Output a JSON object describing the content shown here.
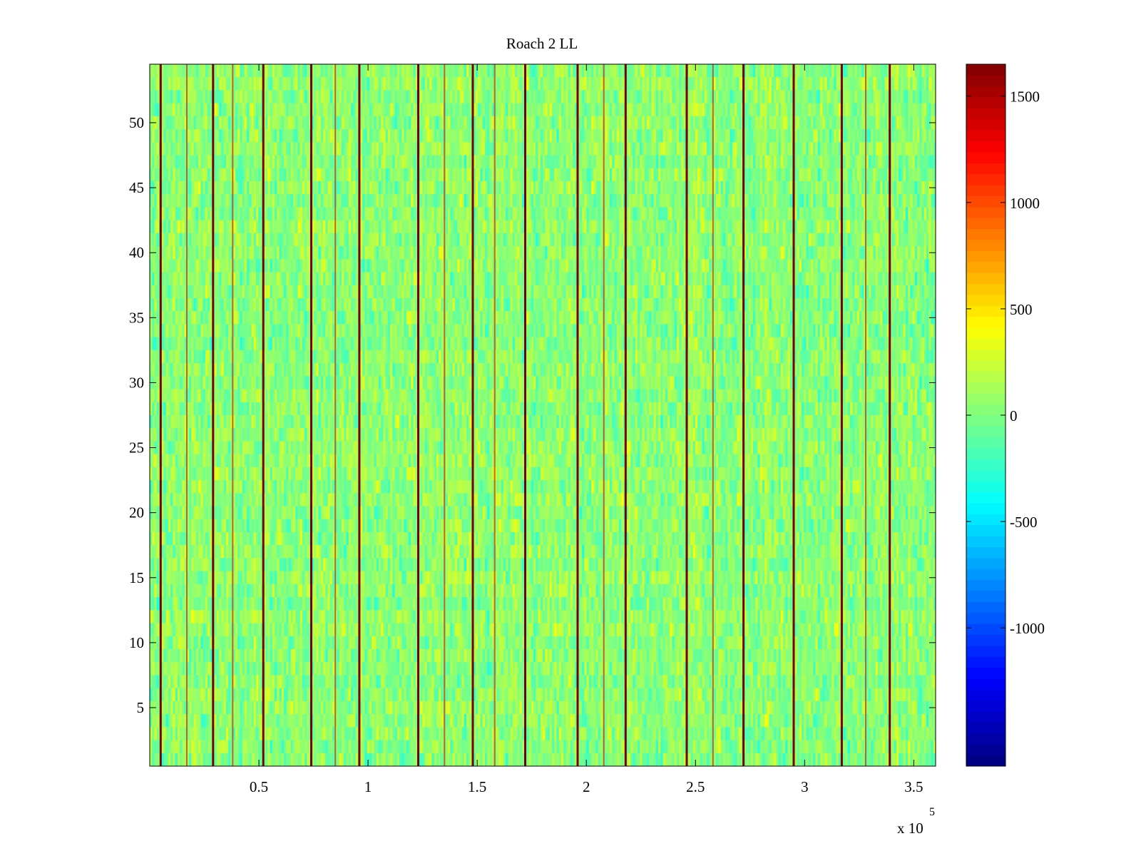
{
  "chart_data": {
    "type": "heatmap",
    "title": "Roach 2 LL",
    "xlabel": "",
    "ylabel": "",
    "x_exponent_label": {
      "base": "x 10",
      "exponent": "5"
    },
    "xlim": [
      0,
      3.6
    ],
    "x_ticks": [
      0.5,
      1,
      1.5,
      2,
      2.5,
      3,
      3.5
    ],
    "x_tick_labels": [
      "0.5",
      "1",
      "1.5",
      "2",
      "2.5",
      "3",
      "3.5"
    ],
    "ylim": [
      0.5,
      54.5
    ],
    "y_ticks": [
      5,
      10,
      15,
      20,
      25,
      30,
      35,
      40,
      45,
      50
    ],
    "y_tick_labels": [
      "5",
      "10",
      "15",
      "20",
      "25",
      "30",
      "35",
      "40",
      "45",
      "50"
    ],
    "rows": 54,
    "colormap": "jet",
    "clim": [
      -1650,
      1650
    ],
    "colorbar_ticks": [
      -1000,
      -500,
      0,
      500,
      1000,
      1500
    ],
    "colorbar_tick_labels": [
      "-1000",
      "-500",
      "0",
      "500",
      "1000",
      "1500"
    ],
    "typical_value_range": [
      -600,
      600
    ],
    "dark_red_spike_columns_x": [
      0.05,
      0.29,
      0.52,
      0.74,
      0.96,
      1.23,
      1.48,
      1.72,
      1.96,
      2.18,
      2.46,
      2.72,
      2.95,
      3.17,
      3.39
    ],
    "secondary_spike_columns_x": [
      0.17,
      0.38,
      0.85,
      1.35,
      1.58,
      2.08,
      2.58,
      3.28
    ]
  }
}
